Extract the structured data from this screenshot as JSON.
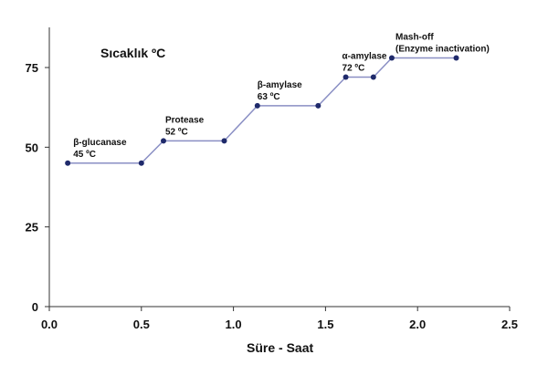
{
  "chart_data": {
    "type": "line",
    "title": "Sıcaklık ºC",
    "xlabel": "Süre - Saat",
    "ylabel": "",
    "xlim": [
      0,
      2.5
    ],
    "ylim": [
      0,
      90
    ],
    "xticks": [
      0.0,
      0.5,
      1.0,
      1.5,
      2.0,
      2.5
    ],
    "xtick_labels": [
      "0.0",
      "0.5",
      "1.0",
      "1.5",
      "2.0",
      "2.5"
    ],
    "yticks": [
      0,
      25,
      50,
      75
    ],
    "ytick_labels": [
      "0",
      "25",
      "50",
      "75"
    ],
    "grid": false,
    "legend": "none",
    "series": [
      {
        "color": "#1f2a6b",
        "line_color": "#8a8fc4",
        "x": [
          0.1,
          0.5,
          0.62,
          0.95,
          1.13,
          1.46,
          1.61,
          1.76,
          1.86,
          2.21
        ],
        "y": [
          45,
          45,
          52,
          52,
          63,
          63,
          72,
          72,
          78,
          78
        ]
      }
    ],
    "annotations": [
      {
        "lines": [
          "β-glucanase",
          "45 ºC"
        ],
        "x": 0.13,
        "y": 45
      },
      {
        "lines": [
          "Protease",
          "52 ºC"
        ],
        "x": 0.63,
        "y": 52
      },
      {
        "lines": [
          "β-amylase",
          "63 ºC"
        ],
        "x": 1.13,
        "y": 63
      },
      {
        "lines": [
          "α-amylase",
          "72 ºC"
        ],
        "x": 1.59,
        "y": 72
      },
      {
        "lines": [
          "Mash-off",
          "(Enzyme inactivation)"
        ],
        "x": 1.88,
        "y": 78
      }
    ]
  }
}
